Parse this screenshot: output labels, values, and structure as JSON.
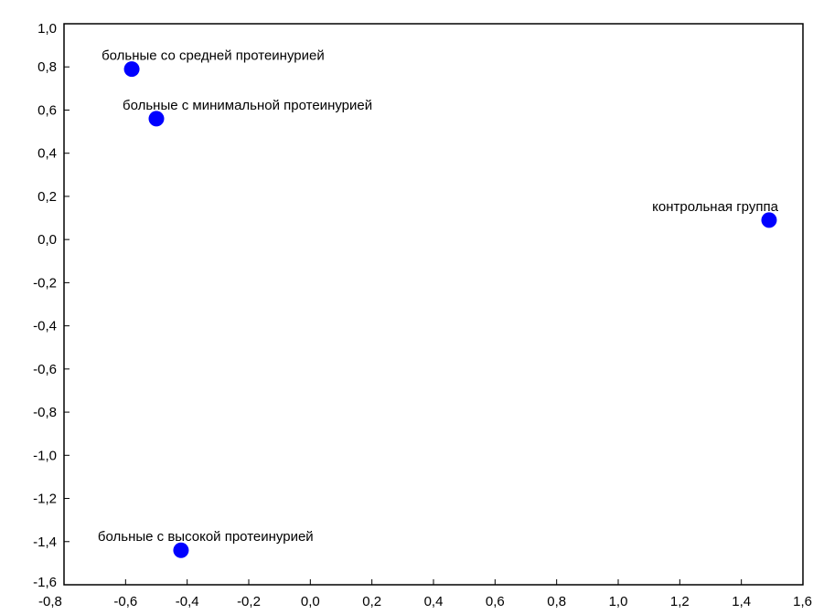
{
  "chart_data": {
    "type": "scatter",
    "title": "",
    "xlabel": "",
    "ylabel": "",
    "xlim": [
      -0.8,
      1.6
    ],
    "ylim": [
      -1.6,
      1.0
    ],
    "x_ticks": [
      -0.8,
      -0.6,
      -0.4,
      -0.2,
      0.0,
      0.2,
      0.4,
      0.6,
      0.8,
      1.0,
      1.2,
      1.4,
      1.6
    ],
    "y_ticks": [
      1.0,
      0.8,
      0.6,
      0.4,
      0.2,
      0.0,
      -0.2,
      -0.4,
      -0.6,
      -0.8,
      -1.0,
      -1.2,
      -1.4,
      -1.6
    ],
    "x_tick_labels": [
      "-0,8",
      "-0,6",
      "-0,4",
      "-0,2",
      "0,0",
      "0,2",
      "0,4",
      "0,6",
      "0,8",
      "1,0",
      "1,2",
      "1,4",
      "1,6"
    ],
    "y_tick_labels": [
      "1,0",
      "0,8",
      "0,6",
      "0,4",
      "0,2",
      "0,0",
      "-0,2",
      "-0,4",
      "-0,6",
      "-0,8",
      "-1,0",
      "-1,2",
      "-1,4",
      "-1,6"
    ],
    "grid": false,
    "marker_color": "#0000ff",
    "points": [
      {
        "label": "больные со средней протеинурией",
        "x": -0.58,
        "y": 0.79
      },
      {
        "label": "больные с минимальной протеинурией",
        "x": -0.5,
        "y": 0.56
      },
      {
        "label": "контрольная группа",
        "x": 1.49,
        "y": 0.09
      },
      {
        "label": "больные с высокой протеинурией",
        "x": -0.42,
        "y": -1.44
      }
    ]
  }
}
